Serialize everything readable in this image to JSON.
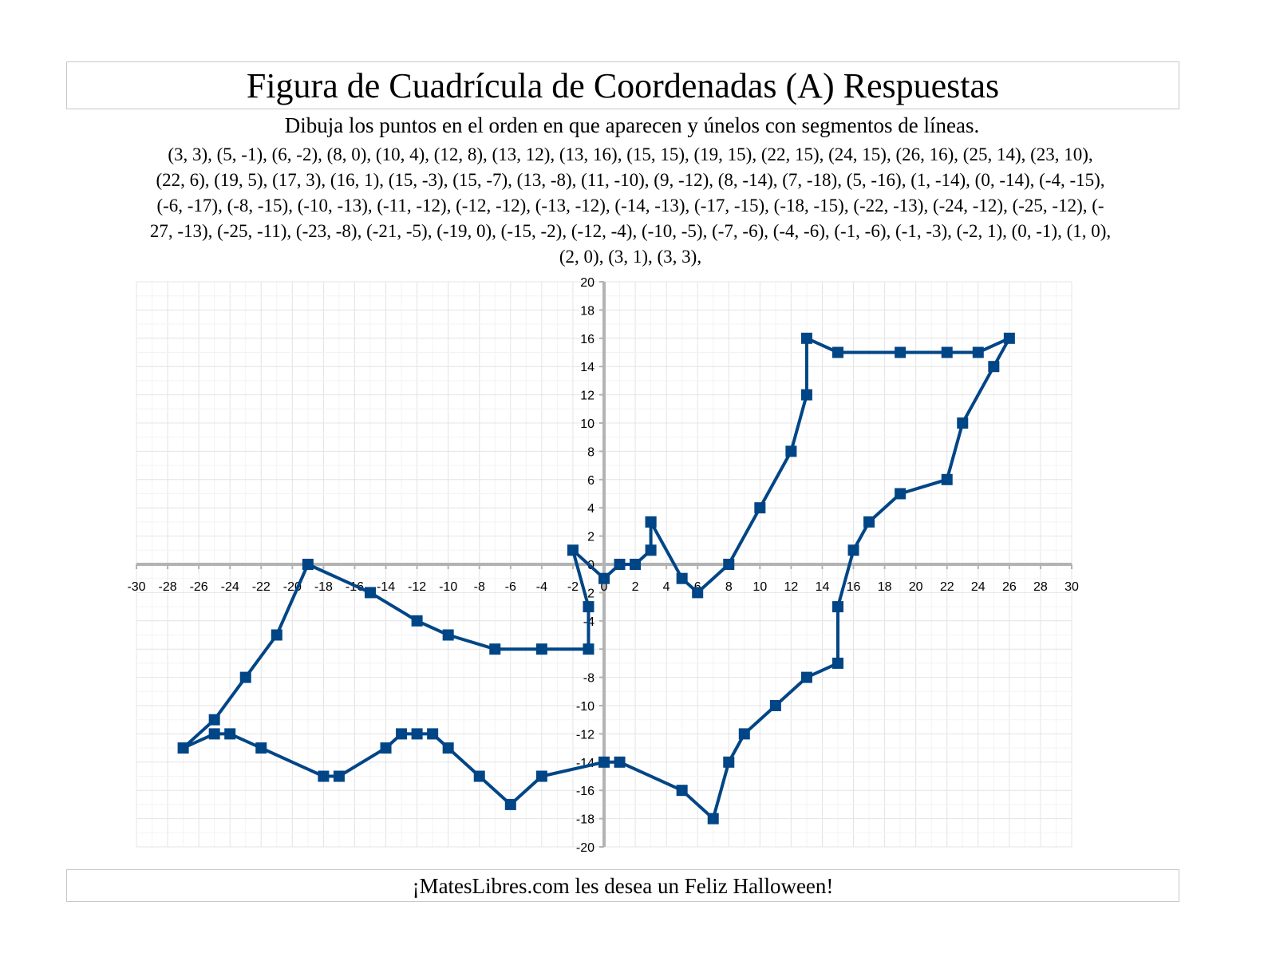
{
  "title": "Figura de Cuadrícula de Coordenadas (A) Respuestas",
  "instructions": "Dibuja los puntos en el orden en que aparecen y únelos con segmentos de líneas.",
  "coordinate_lines": [
    "(3, 3), (5, -1), (6, -2), (8, 0), (10, 4), (12, 8), (13, 12), (13, 16), (15, 15), (19, 15), (22, 15), (24, 15), (26, 16), (25, 14), (23, 10),",
    "(22, 6), (19, 5), (17, 3), (16, 1), (15, -3), (15, -7), (13, -8), (11, -10), (9, -12), (8, -14), (7, -18), (5, -16), (1, -14), (0, -14), (-4, -15),",
    "(-6, -17), (-8, -15), (-10, -13), (-11, -12), (-12, -12), (-13, -12), (-14, -13), (-17, -15), (-18, -15), (-22, -13), (-24, -12), (-25, -12), (-",
    "27, -13), (-25, -11), (-23, -8), (-21, -5), (-19, 0), (-15, -2), (-12, -4), (-10, -5), (-7, -6), (-4, -6), (-1, -6), (-1, -3), (-2, 1), (0, -1), (1, 0),",
    "(2, 0), (3, 1), (3, 3),"
  ],
  "footer": "¡MatesLibres.com les desea un Feliz Halloween!",
  "chart_data": {
    "type": "line",
    "xlim": [
      -30,
      30
    ],
    "ylim": [
      -20,
      20
    ],
    "x_ticks": [
      -30,
      -28,
      -26,
      -24,
      -22,
      -20,
      -18,
      -16,
      -14,
      -12,
      -10,
      -8,
      -6,
      -4,
      -2,
      0,
      2,
      4,
      6,
      8,
      10,
      12,
      14,
      16,
      18,
      20,
      22,
      24,
      26,
      28,
      30
    ],
    "y_ticks": [
      -20,
      -18,
      -16,
      -14,
      -12,
      -10,
      -8,
      -6,
      -4,
      -2,
      0,
      2,
      4,
      6,
      8,
      10,
      12,
      14,
      16,
      18,
      20
    ],
    "grid": true,
    "marker": "square",
    "line_color": "#004586",
    "points": [
      [
        3,
        3
      ],
      [
        5,
        -1
      ],
      [
        6,
        -2
      ],
      [
        8,
        0
      ],
      [
        10,
        4
      ],
      [
        12,
        8
      ],
      [
        13,
        12
      ],
      [
        13,
        16
      ],
      [
        15,
        15
      ],
      [
        19,
        15
      ],
      [
        22,
        15
      ],
      [
        24,
        15
      ],
      [
        26,
        16
      ],
      [
        25,
        14
      ],
      [
        23,
        10
      ],
      [
        22,
        6
      ],
      [
        19,
        5
      ],
      [
        17,
        3
      ],
      [
        16,
        1
      ],
      [
        15,
        -3
      ],
      [
        15,
        -7
      ],
      [
        13,
        -8
      ],
      [
        11,
        -10
      ],
      [
        9,
        -12
      ],
      [
        8,
        -14
      ],
      [
        7,
        -18
      ],
      [
        5,
        -16
      ],
      [
        1,
        -14
      ],
      [
        0,
        -14
      ],
      [
        -4,
        -15
      ],
      [
        -6,
        -17
      ],
      [
        -8,
        -15
      ],
      [
        -10,
        -13
      ],
      [
        -11,
        -12
      ],
      [
        -12,
        -12
      ],
      [
        -13,
        -12
      ],
      [
        -14,
        -13
      ],
      [
        -17,
        -15
      ],
      [
        -18,
        -15
      ],
      [
        -22,
        -13
      ],
      [
        -24,
        -12
      ],
      [
        -25,
        -12
      ],
      [
        -27,
        -13
      ],
      [
        -25,
        -11
      ],
      [
        -23,
        -8
      ],
      [
        -21,
        -5
      ],
      [
        -19,
        0
      ],
      [
        -15,
        -2
      ],
      [
        -12,
        -4
      ],
      [
        -10,
        -5
      ],
      [
        -7,
        -6
      ],
      [
        -4,
        -6
      ],
      [
        -1,
        -6
      ],
      [
        -1,
        -3
      ],
      [
        -2,
        1
      ],
      [
        0,
        -1
      ],
      [
        1,
        0
      ],
      [
        2,
        0
      ],
      [
        3,
        1
      ],
      [
        3,
        3
      ]
    ]
  }
}
